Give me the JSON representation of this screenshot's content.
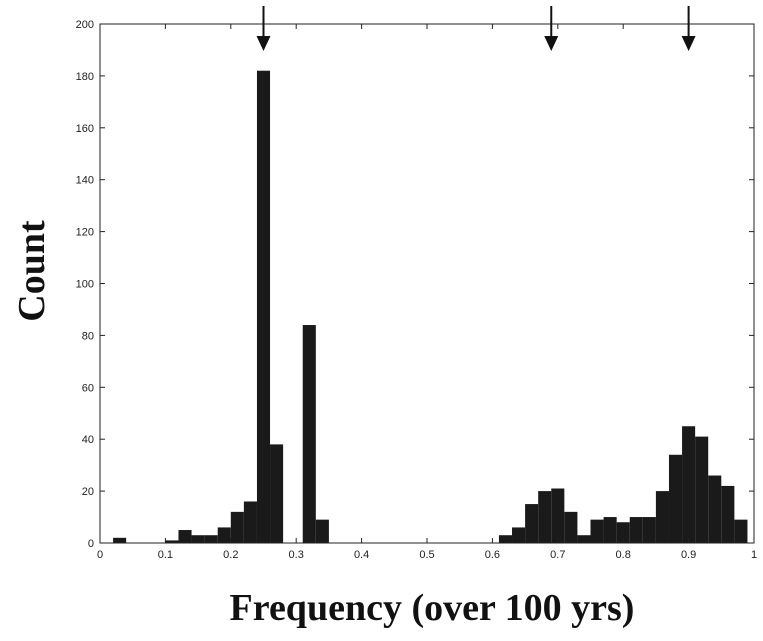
{
  "chart_data": {
    "type": "bar",
    "title": "",
    "xlabel": "Frequency (over 100 yrs)",
    "ylabel": "Count",
    "xlim": [
      0,
      1
    ],
    "ylim": [
      0,
      200
    ],
    "grid": false,
    "legend": "none",
    "bar_color": "#1a1a1a",
    "bin_width": 0.02,
    "xticks": [
      0,
      0.1,
      0.2,
      0.3,
      0.4,
      0.5,
      0.6,
      0.7,
      0.8,
      0.9,
      1
    ],
    "xtick_labels": [
      "0",
      "0.1",
      "0.2",
      "0.3",
      "0.4",
      "0.5",
      "0.6",
      "0.7",
      "0.8",
      "0.9",
      "1"
    ],
    "yticks": [
      0,
      20,
      40,
      60,
      80,
      100,
      120,
      140,
      160,
      180,
      200
    ],
    "ytick_labels": [
      "0",
      "20",
      "40",
      "60",
      "80",
      "100",
      "120",
      "140",
      "160",
      "180",
      "200"
    ],
    "bin_left_edges": [
      0.02,
      0.1,
      0.12,
      0.14,
      0.16,
      0.18,
      0.2,
      0.22,
      0.24,
      0.26,
      0.31,
      0.33,
      0.61,
      0.63,
      0.65,
      0.67,
      0.69,
      0.71,
      0.73,
      0.75,
      0.77,
      0.79,
      0.81,
      0.83,
      0.85,
      0.87,
      0.89,
      0.91,
      0.93,
      0.95,
      0.97
    ],
    "values": [
      2,
      1,
      5,
      3,
      3,
      6,
      12,
      16,
      182,
      38,
      84,
      9,
      3,
      6,
      15,
      20,
      21,
      12,
      3,
      9,
      10,
      8,
      10,
      10,
      20,
      34,
      45,
      41,
      26,
      22,
      9
    ],
    "annotations": [
      {
        "type": "arrow-down",
        "x": 0.25
      },
      {
        "type": "arrow-down",
        "x": 0.69
      },
      {
        "type": "arrow-down",
        "x": 0.9
      }
    ]
  }
}
